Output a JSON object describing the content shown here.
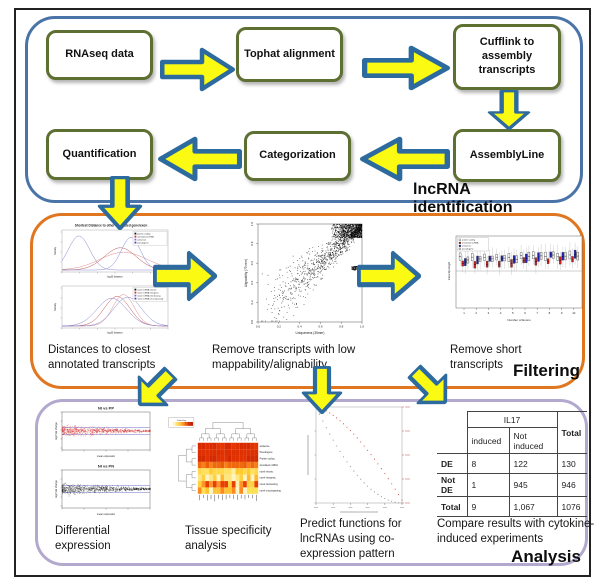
{
  "sections": {
    "identification": {
      "label": "lncRNA identification",
      "boxes": [
        "RNAseq data",
        "Tophat alignment",
        "Cufflink to assembly transcripts",
        "AssemblyLine",
        "Categorization",
        "Quantification"
      ]
    },
    "filtering": {
      "label": "Filtering",
      "captions": [
        "Distances to closest annotated transcripts",
        "Remove transcripts with low mappability/alignability",
        "Remove short transcripts"
      ]
    },
    "analysis": {
      "label": "Analysis",
      "captions": [
        "Differential expression",
        "Tissue specificity analysis",
        "Predict functions for lncRNAs using co-expression pattern",
        "Compare results with cytokine-induced experiments"
      ]
    }
  },
  "plots": {
    "density": {
      "title": "Shortest Distance to other annotated gene/exon",
      "xlabel": "log10 distance",
      "ylabel": "Density",
      "legend1": [
        "protein coding",
        "annotated ncRNA",
        "antisense",
        "pseudogene"
      ],
      "legend2": [
        "novel ncRNA intronic",
        "novel ncRNA intergenic",
        "novel ncRNA interleaving",
        "novel ncRNA encompassing"
      ]
    },
    "scatter": {
      "xlabel": "Uniqueness (35mer)",
      "ylabel": "Alignability (75 mer)",
      "ticks": [
        "0.0",
        "0.2",
        "0.4",
        "0.6",
        "0.8",
        "1.0"
      ]
    },
    "boxplot": {
      "xlabel": "Number of Exons",
      "ylabel": "transcript length",
      "ticks": [
        "1",
        "2",
        "3",
        "4",
        "5",
        "6",
        "7",
        "8",
        "9",
        "10"
      ],
      "legend": [
        "protein coding",
        "annotated ncRNA",
        "antisense",
        "pseudogene"
      ]
    },
    "ma": {
      "top": "NI vs PP",
      "bottom": "NI vs PN",
      "xlabel": "mean expression",
      "ylabel": "log2 fold change"
    },
    "heatmap": {
      "key": "Color Key",
      "rows": [
        "antisense",
        "Pseudogene",
        "Protein coding",
        "annotated ncRNA",
        "novel intronic",
        "novel intergenic",
        "novel interleaving",
        "novel encompassing"
      ]
    }
  },
  "table": {
    "group_header": "IL17",
    "total_header": "Total",
    "col1": "induced",
    "col2": "Not induced",
    "rows": [
      [
        "DE",
        "8",
        "122",
        "130"
      ],
      [
        "Not DE",
        "1",
        "945",
        "946"
      ],
      [
        "Total",
        "9",
        "1,067",
        "1076"
      ]
    ]
  },
  "colors": {
    "arrow_fill": "#fafa12",
    "arrow_outline": "#2d6b9e",
    "identification_border": "#4a74a8",
    "filtering_border": "#e0761f",
    "analysis_border": "#b3a9ce",
    "node_border": "#5d6f31"
  }
}
